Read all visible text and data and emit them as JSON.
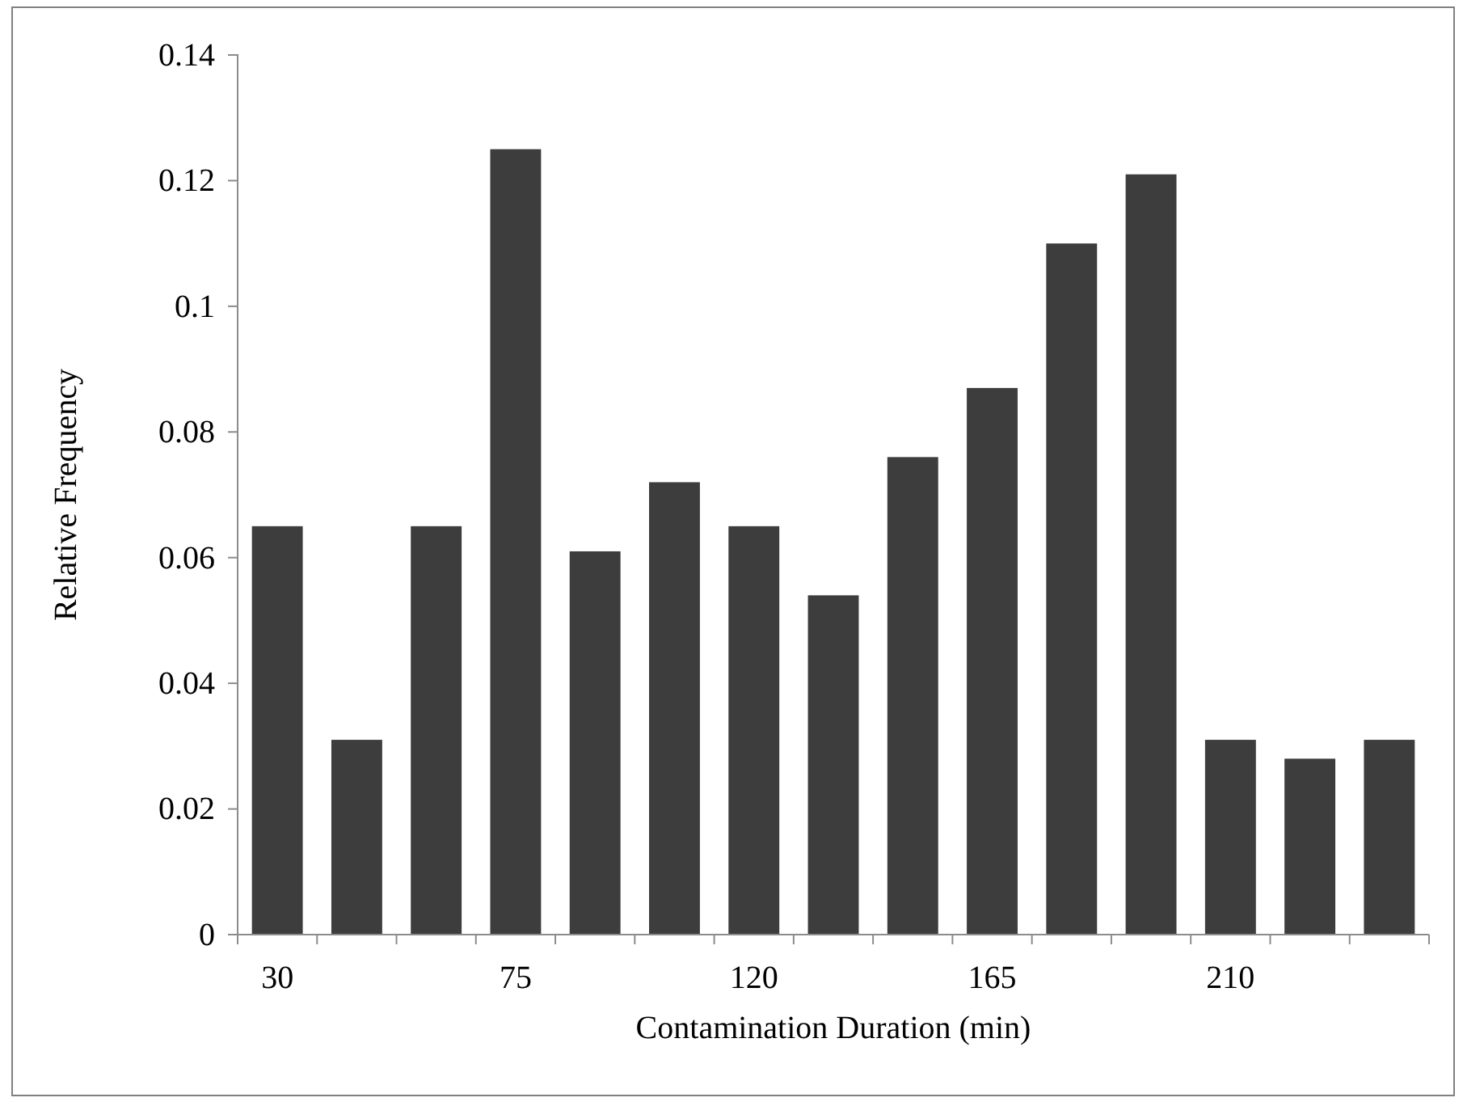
{
  "chart_data": {
    "type": "bar",
    "xlabel": "Contamination Duration (min)",
    "ylabel": "Relative Frequency",
    "categories": [
      "30",
      null,
      null,
      "75",
      null,
      null,
      "120",
      null,
      null,
      "165",
      null,
      null,
      "210",
      null,
      null
    ],
    "values": [
      0.065,
      0.031,
      0.065,
      0.125,
      0.061,
      0.072,
      0.065,
      0.054,
      0.076,
      0.087,
      0.11,
      0.121,
      0.031,
      0.028,
      0.031
    ],
    "color": "#3d3d3d",
    "ylim": [
      0,
      0.14
    ],
    "yticks": [
      0,
      0.02,
      0.04,
      0.06,
      0.08,
      0.1,
      0.12,
      0.14
    ],
    "grid": false
  }
}
